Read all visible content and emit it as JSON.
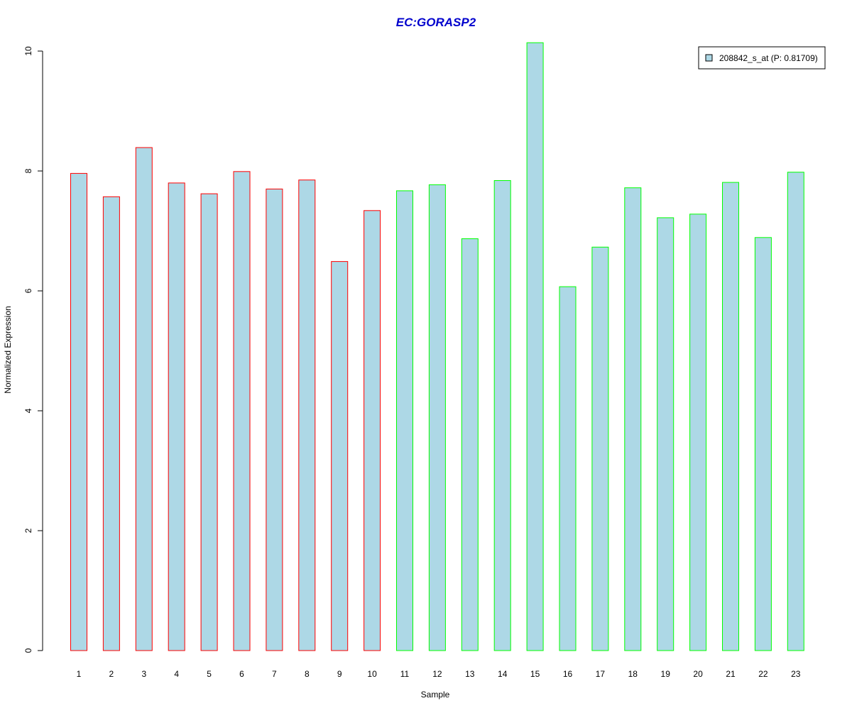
{
  "colors": {
    "bar_fill": "#add8e6",
    "group1_border": "#ff0000",
    "group2_border": "#00ff00",
    "title": "#0000cd",
    "axis": "#000000"
  },
  "chart_data": {
    "type": "bar",
    "title": "EC:GORASP2",
    "xlabel": "Sample",
    "ylabel": "Normalized Expression",
    "ylim": [
      0,
      10.2
    ],
    "yticks": [
      0,
      2,
      4,
      6,
      8,
      10
    ],
    "grid": false,
    "legend_position": "top-right",
    "categories": [
      "1",
      "2",
      "3",
      "4",
      "5",
      "6",
      "7",
      "8",
      "9",
      "10",
      "11",
      "12",
      "13",
      "14",
      "15",
      "16",
      "17",
      "18",
      "19",
      "20",
      "21",
      "22",
      "23"
    ],
    "series": [
      {
        "name": "208842_s_at (P: 0.81709)",
        "values": [
          7.96,
          7.57,
          8.39,
          7.8,
          7.62,
          7.99,
          7.7,
          7.85,
          6.49,
          7.34,
          7.67,
          7.77,
          6.87,
          7.84,
          10.14,
          6.07,
          6.73,
          7.72,
          7.22,
          7.28,
          7.81,
          6.89,
          7.98
        ],
        "groups": [
          1,
          1,
          1,
          1,
          1,
          1,
          1,
          1,
          1,
          1,
          2,
          2,
          2,
          2,
          2,
          2,
          2,
          2,
          2,
          2,
          2,
          2,
          2
        ]
      }
    ]
  }
}
